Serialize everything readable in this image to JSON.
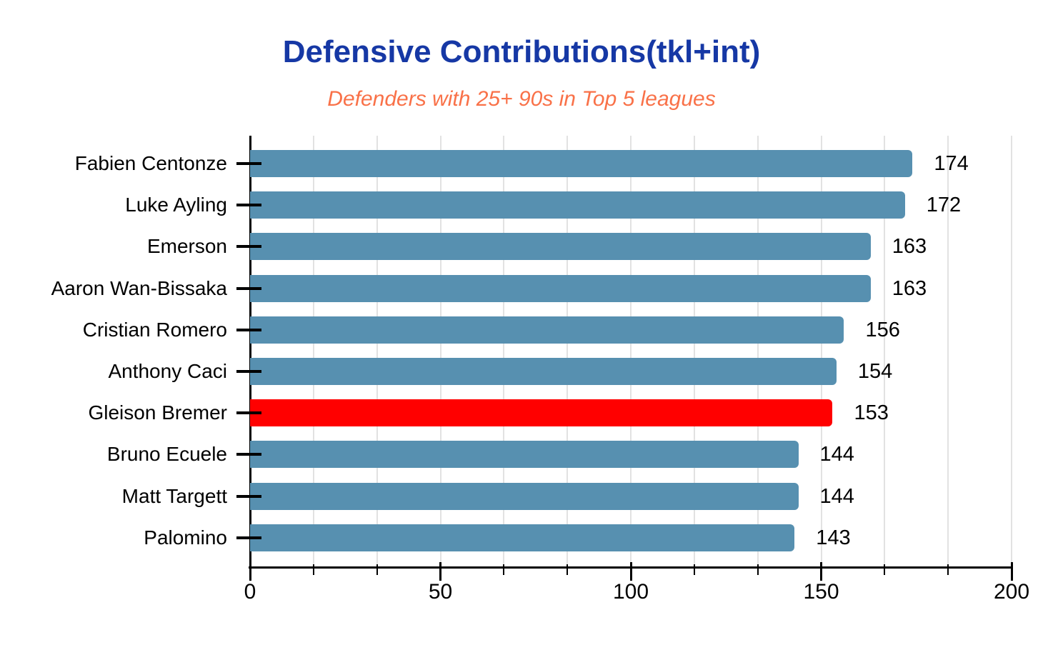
{
  "chart_data": {
    "type": "bar",
    "orientation": "horizontal",
    "title": "Defensive Contributions(tkl+int)",
    "subtitle": "Defenders with 25+ 90s in Top 5 leagues",
    "categories": [
      "Fabien Centonze",
      "Luke Ayling",
      "Emerson",
      "Aaron Wan-Bissaka",
      "Cristian Romero",
      "Anthony Caci",
      "Gleison Bremer",
      "Bruno Ecuele",
      "Matt Targett",
      "Palomino"
    ],
    "values": [
      174,
      172,
      163,
      163,
      156,
      154,
      153,
      144,
      144,
      143
    ],
    "highlighted_category": "Gleison Bremer",
    "xlabel": "",
    "ylabel": "",
    "xlim": [
      0,
      200
    ],
    "x_major_ticks": [
      0,
      50,
      100,
      150,
      200
    ],
    "x_minor_divisions_per_major": 3,
    "grid": "vertical-minor-gridlines",
    "legend": "none",
    "value_labels": "shown-right-of-bars",
    "colors": {
      "bar": "#5790b0",
      "highlight_bar": "#ff0000",
      "title": "#1638a5",
      "subtitle": "#f97148",
      "gridline": "#e2e2e2",
      "axis": "#000000",
      "text": "#000000"
    }
  }
}
